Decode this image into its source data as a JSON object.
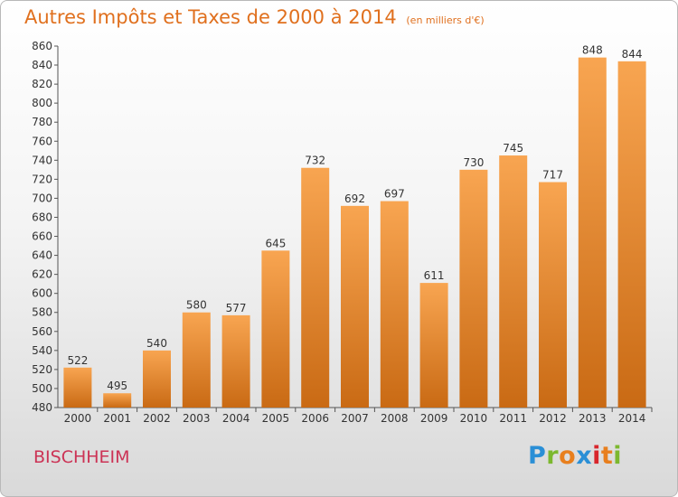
{
  "title": "Autres Impôts et Taxes de 2000 à 2014",
  "title_unit": "(en milliers d'€)",
  "town": "BISCHHEIM",
  "brand": {
    "letters": [
      "P",
      "r",
      "o",
      "x",
      "i",
      "t",
      "i"
    ],
    "colors": [
      "#2a8fd6",
      "#7cb82f",
      "#e87f1e",
      "#2a8fd6",
      "#d8262c",
      "#e87f1e",
      "#7cb82f"
    ]
  },
  "colors": {
    "bar_light": "#f8a551",
    "bar_dark": "#c96a14",
    "title": "#e0701e",
    "town": "#cc3355"
  },
  "chart_data": {
    "type": "bar",
    "title": "Autres Impôts et Taxes de 2000 à 2014",
    "xlabel": "",
    "ylabel": "",
    "ylim": [
      480,
      860
    ],
    "ystep": 20,
    "grid": false,
    "categories": [
      "2000",
      "2001",
      "2002",
      "2003",
      "2004",
      "2005",
      "2006",
      "2007",
      "2008",
      "2009",
      "2010",
      "2011",
      "2012",
      "2013",
      "2014"
    ],
    "values": [
      522,
      495,
      540,
      580,
      577,
      645,
      732,
      692,
      697,
      611,
      730,
      745,
      717,
      848,
      844
    ]
  }
}
